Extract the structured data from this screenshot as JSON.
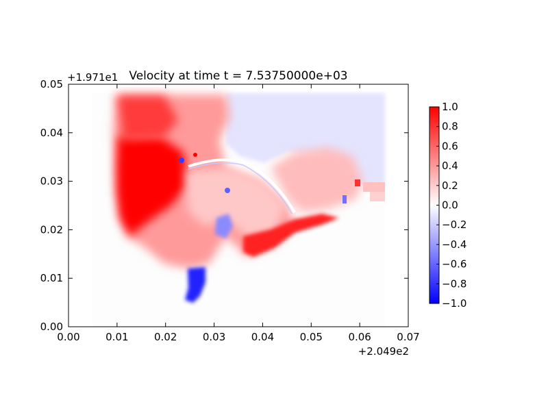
{
  "chart_data": {
    "type": "heatmap",
    "title": "Velocity at time t = 7.53750000e+03",
    "xlabel": "",
    "ylabel": "",
    "x_offset_label": "+2.049e2",
    "y_offset_label": "+1.971e1",
    "xlim": [
      0.0,
      0.07
    ],
    "ylim": [
      0.0,
      0.05
    ],
    "x_ticks": [
      0.0,
      0.01,
      0.02,
      0.03,
      0.04,
      0.05,
      0.06,
      0.07
    ],
    "x_tick_labels": [
      "0.00",
      "0.01",
      "0.02",
      "0.03",
      "0.04",
      "0.05",
      "0.06",
      "0.07"
    ],
    "y_ticks": [
      0.0,
      0.01,
      0.02,
      0.03,
      0.04,
      0.05
    ],
    "y_tick_labels": [
      "0.00",
      "0.01",
      "0.02",
      "0.03",
      "0.04",
      "0.05"
    ],
    "colormap": "bwr",
    "colormap_colors": [
      "#0000ff",
      "#ffffff",
      "#ff0000"
    ],
    "colorbar": {
      "range": [
        -1.0,
        1.0
      ],
      "ticks": [
        1.0,
        0.8,
        0.6,
        0.4,
        0.2,
        0.0,
        -0.2,
        -0.4,
        -0.6,
        -0.8,
        -1.0
      ],
      "tick_labels": [
        "1.0",
        "0.8",
        "0.6",
        "0.4",
        "0.2",
        "0.0",
        "−0.2",
        "−0.4",
        "−0.6",
        "−0.8",
        "−1.0"
      ]
    },
    "field_extent": {
      "x": [
        0.005,
        0.065
      ],
      "y": [
        0.0,
        0.048
      ]
    },
    "regions": [
      {
        "id": "upper-right-negative",
        "x": [
          0.036,
          0.065
        ],
        "y": [
          0.03,
          0.048
        ],
        "value": -0.1
      },
      {
        "id": "western-lobe",
        "x": [
          0.01,
          0.033
        ],
        "y": [
          0.01,
          0.048
        ],
        "value": 0.7
      },
      {
        "id": "core-maximum",
        "x": [
          0.01,
          0.024
        ],
        "y": [
          0.022,
          0.038
        ],
        "value": 1.0
      },
      {
        "id": "central-basin",
        "x": [
          0.02,
          0.042
        ],
        "y": [
          0.015,
          0.032
        ],
        "value": 0.35
      },
      {
        "id": "right-bulge",
        "x": [
          0.04,
          0.06
        ],
        "y": [
          0.024,
          0.036
        ],
        "value": 0.3
      },
      {
        "id": "southern-channel",
        "x": [
          0.023,
          0.03
        ],
        "y": [
          0.006,
          0.012
        ],
        "value": -0.9
      },
      {
        "id": "central-eddy",
        "x": [
          0.029,
          0.034
        ],
        "y": [
          0.018,
          0.022
        ],
        "value": -0.5
      },
      {
        "id": "southeast-band",
        "x": [
          0.036,
          0.055
        ],
        "y": [
          0.015,
          0.023
        ],
        "value": 0.9
      }
    ]
  }
}
